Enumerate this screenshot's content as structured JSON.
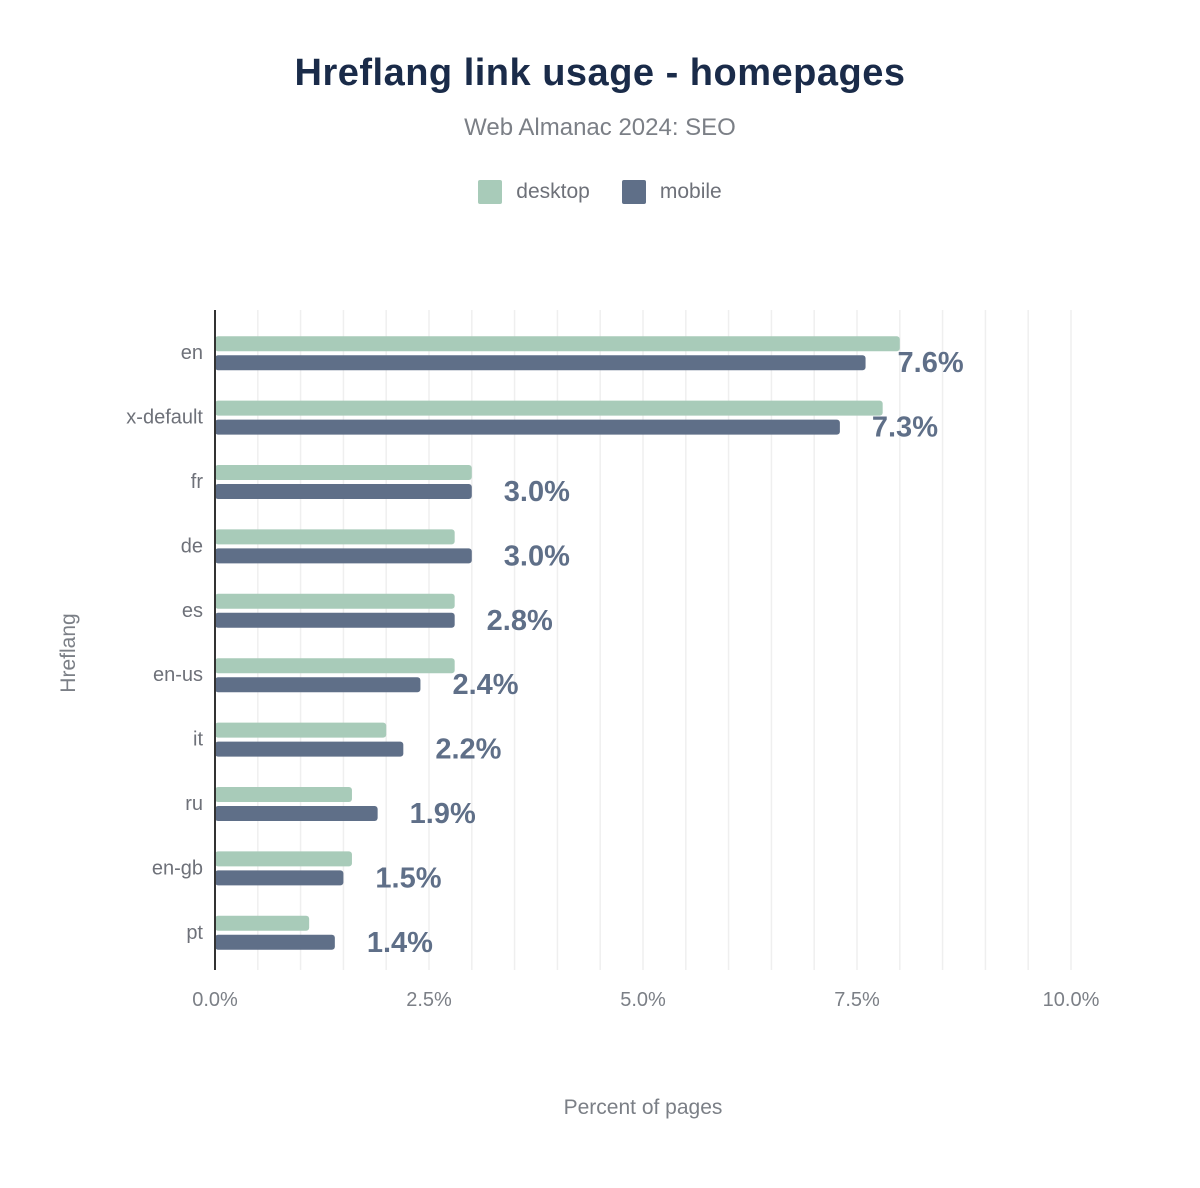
{
  "chart_data": {
    "type": "bar",
    "orientation": "horizontal",
    "title": "Hreflang link usage - homepages",
    "subtitle": "Web Almanac 2024: SEO",
    "xlabel": "Percent of pages",
    "ylabel": "Hreflang",
    "categories": [
      "en",
      "x-default",
      "fr",
      "de",
      "es",
      "en-us",
      "it",
      "ru",
      "en-gb",
      "pt"
    ],
    "series": [
      {
        "name": "desktop",
        "color": "#a8cbb9",
        "values": [
          8.0,
          7.8,
          3.0,
          2.8,
          2.8,
          2.8,
          2.0,
          1.6,
          1.6,
          1.1
        ]
      },
      {
        "name": "mobile",
        "color": "#5f6f88",
        "values": [
          7.6,
          7.3,
          3.0,
          3.0,
          2.8,
          2.4,
          2.2,
          1.9,
          1.5,
          1.4
        ]
      }
    ],
    "data_labels": [
      "7.6%",
      "7.3%",
      "3.0%",
      "3.0%",
      "2.8%",
      "2.4%",
      "2.2%",
      "1.9%",
      "1.5%",
      "1.4%"
    ],
    "xlim": [
      0,
      10
    ],
    "xticks": [
      "0.0%",
      "2.5%",
      "5.0%",
      "7.5%",
      "10.0%"
    ],
    "grid": true,
    "legend_placement": "top-center"
  }
}
